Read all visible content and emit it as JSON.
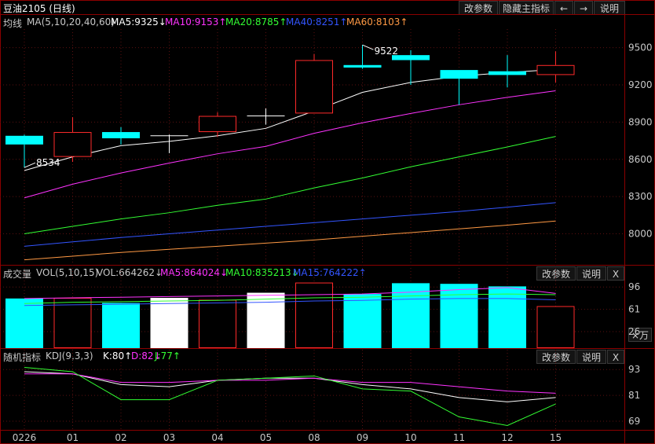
{
  "title_bar": {
    "symbol": "豆油2105 (日线)",
    "buttons": [
      "改参数",
      "隐藏主指标",
      "←",
      "→",
      "说明"
    ]
  },
  "main_indicator": {
    "label": "均线",
    "params": "MA(5,10,20,40,60)",
    "items": [
      {
        "text": "MA5:9325↓",
        "color": "#ffffff"
      },
      {
        "text": "MA10:9153↑",
        "color": "#ff33ff"
      },
      {
        "text": "MA20:8785↑",
        "color": "#33ff33"
      },
      {
        "text": "MA40:8251↑",
        "color": "#3355ff"
      },
      {
        "text": "MA60:8103↑",
        "color": "#ff9944"
      }
    ]
  },
  "volume_indicator": {
    "label": "成交量",
    "params": "VOL(5,10,15)",
    "items": [
      {
        "text": "VOL:664262↓",
        "color": "#c8c8c8"
      },
      {
        "text": "MA5:864024↓",
        "color": "#ff33ff"
      },
      {
        "text": "MA10:835213↓",
        "color": "#33ff33"
      },
      {
        "text": "MA15:764222↑",
        "color": "#3355ff"
      }
    ],
    "buttons": [
      "改参数",
      "说明",
      "X"
    ],
    "unit_button": "×万"
  },
  "kdj_indicator": {
    "label": "随机指标",
    "params": "KDJ(9,3,3)",
    "items": [
      {
        "text": "K:80↑",
        "color": "#ffffff"
      },
      {
        "text": "D:82↓",
        "color": "#ff33ff"
      },
      {
        "text": "J:77↑",
        "color": "#33ff33"
      }
    ],
    "buttons": [
      "改参数",
      "说明",
      "X"
    ]
  },
  "chart_data": {
    "type": "candlestick",
    "categories": [
      "0226",
      "01",
      "02",
      "03",
      "04",
      "05",
      "08",
      "09",
      "10",
      "11",
      "12",
      "15"
    ],
    "price": {
      "ylim": [
        7750,
        9650
      ],
      "ticks": [
        8000,
        8300,
        8600,
        8900,
        9200,
        9500
      ],
      "candles": [
        {
          "o": 8790,
          "h": 8800,
          "l": 8534,
          "c": 8720
        },
        {
          "o": 8620,
          "h": 8940,
          "l": 8580,
          "c": 8820
        },
        {
          "o": 8820,
          "h": 8860,
          "l": 8720,
          "c": 8770
        },
        {
          "o": 8790,
          "h": 8800,
          "l": 8650,
          "c": 8790
        },
        {
          "o": 8820,
          "h": 8980,
          "l": 8780,
          "c": 8950
        },
        {
          "o": 8950,
          "h": 9010,
          "l": 8880,
          "c": 8950
        },
        {
          "o": 8970,
          "h": 9450,
          "l": 8970,
          "c": 9400
        },
        {
          "o": 9360,
          "h": 9522,
          "l": 9330,
          "c": 9340
        },
        {
          "o": 9440,
          "h": 9480,
          "l": 9200,
          "c": 9400
        },
        {
          "o": 9320,
          "h": 9320,
          "l": 9040,
          "c": 9250
        },
        {
          "o": 9310,
          "h": 9440,
          "l": 9180,
          "c": 9280
        },
        {
          "o": 9280,
          "h": 9470,
          "l": 9220,
          "c": 9360
        }
      ],
      "annotations": [
        {
          "index": 0,
          "value": 8534,
          "text": "8534"
        },
        {
          "index": 7,
          "value": 9522,
          "text": "9522"
        }
      ],
      "ma": [
        {
          "name": "MA5",
          "color": "#ffffff",
          "values": [
            8510,
            8620,
            8710,
            8745,
            8790,
            8850,
            8990,
            9140,
            9220,
            9270,
            9300,
            9325
          ]
        },
        {
          "name": "MA10",
          "color": "#ff33ff",
          "values": [
            8290,
            8400,
            8490,
            8570,
            8645,
            8705,
            8810,
            8895,
            8970,
            9040,
            9100,
            9153
          ]
        },
        {
          "name": "MA20",
          "color": "#33ff33",
          "values": [
            8000,
            8060,
            8120,
            8170,
            8230,
            8280,
            8370,
            8450,
            8540,
            8620,
            8700,
            8785
          ]
        },
        {
          "name": "MA40",
          "color": "#3355ff",
          "values": [
            7900,
            7935,
            7970,
            8000,
            8030,
            8060,
            8090,
            8120,
            8150,
            8180,
            8215,
            8251
          ]
        },
        {
          "name": "MA60",
          "color": "#ff9944",
          "values": [
            7790,
            7820,
            7850,
            7875,
            7900,
            7925,
            7950,
            7980,
            8010,
            8040,
            8070,
            8103
          ]
        }
      ]
    },
    "volume": {
      "unit": "×万",
      "ylim": [
        0,
        100
      ],
      "ticks": [
        26,
        61,
        96
      ],
      "values": [
        78,
        79,
        71,
        79,
        76,
        87,
        103,
        85,
        102,
        101,
        97,
        66
      ],
      "ma": [
        {
          "name": "MA5",
          "color": "#ff33ff",
          "values": [
            78,
            79,
            80,
            81,
            82,
            83,
            84,
            85,
            88,
            92,
            95,
            86
          ]
        },
        {
          "name": "MA10",
          "color": "#33ff33",
          "values": [
            70,
            72,
            73,
            74,
            75,
            77,
            79,
            80,
            82,
            84,
            85,
            84
          ]
        },
        {
          "name": "MA15",
          "color": "#3355ff",
          "values": [
            67,
            68,
            69,
            70,
            71,
            72,
            74,
            75,
            77,
            78,
            78,
            76
          ]
        }
      ]
    },
    "kdj": {
      "ylim": [
        65,
        96
      ],
      "ticks": [
        69,
        81,
        93
      ],
      "K": [
        92,
        91,
        86,
        85,
        88,
        89,
        89,
        86,
        84,
        80,
        78,
        80
      ],
      "D": [
        91,
        91,
        87,
        87,
        88,
        88,
        89,
        87,
        87,
        85,
        83,
        82
      ],
      "J": [
        94,
        92,
        79,
        79,
        88,
        89,
        90,
        84,
        83,
        71,
        67,
        77
      ]
    }
  }
}
